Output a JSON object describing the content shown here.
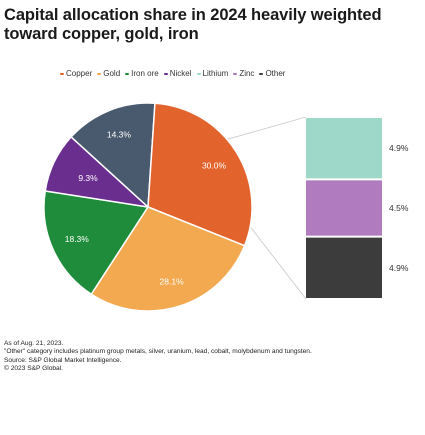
{
  "title": "Capital allocation share in 2024 heavily weighted toward copper, gold, iron",
  "chart_data": [
    {
      "type": "pie",
      "categories": [
        "Copper",
        "Gold",
        "Iron ore",
        "Nickel",
        "Lithium",
        "Zinc",
        "Other"
      ],
      "colors": [
        "#e3632d",
        "#f2a950",
        "#1f8c3b",
        "#6a2e8f",
        "#4a5a6e",
        "#9ed8c8",
        "#b07cbf",
        "#3c3c3c"
      ],
      "legend": [
        {
          "label": "Copper",
          "color": "#e3632d"
        },
        {
          "label": "Gold",
          "color": "#f2a950"
        },
        {
          "label": "Iron ore",
          "color": "#1f8c3b"
        },
        {
          "label": "Nickel",
          "color": "#6a2e8f"
        },
        {
          "label": "Lithium",
          "color": "#9ed8c8"
        },
        {
          "label": "Zinc",
          "color": "#b07cbf"
        },
        {
          "label": "Other",
          "color": "#3c3c3c"
        }
      ],
      "slices": [
        {
          "value": 18.3,
          "label": "18.3%",
          "color": "#1f8c3b"
        },
        {
          "value": 9.3,
          "label": "9.3%",
          "color": "#6a2e8f"
        },
        {
          "value": 14.3,
          "label": "14.3%",
          "color": "#4a5a6e"
        },
        {
          "value": 30.0,
          "label": "30.0%",
          "color": "#e3632d"
        },
        {
          "value": 28.1,
          "label": "28.1%",
          "color": "#f2a950"
        }
      ],
      "legend_position": "top"
    },
    {
      "type": "bar",
      "stacked": true,
      "values": [
        4.9,
        4.5,
        4.9
      ],
      "labels": [
        "4.9%",
        "4.5%",
        "4.9%"
      ],
      "colors": [
        "#9ed8c8",
        "#b07cbf",
        "#3c3c3c"
      ]
    }
  ],
  "notes": {
    "as_of": "As of Aug. 21, 2023.",
    "other": "\"Other\" category includes platinum group metals, silver, uranium, lead, cobalt, molybdenum and tungsten.",
    "source": "Source: S&P Global Market Intelligence.",
    "copyright": "© 2023 S&P Global."
  }
}
